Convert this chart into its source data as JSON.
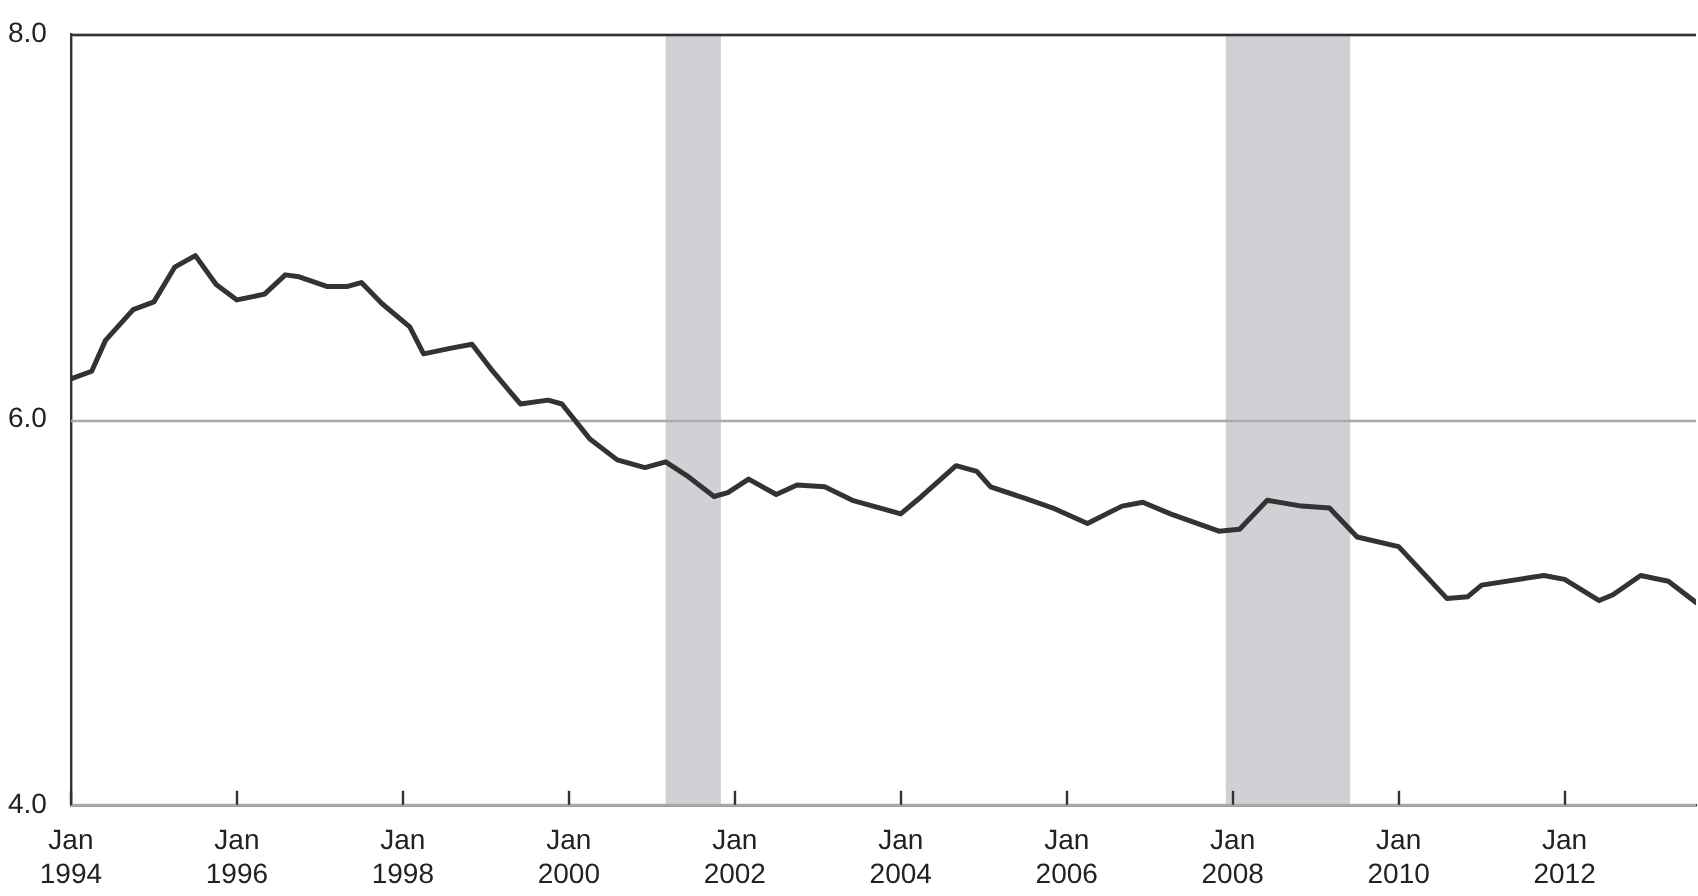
{
  "chart_data": {
    "type": "line",
    "x": [
      "1994-01",
      "1994-04",
      "1994-06",
      "1994-10",
      "1995-01",
      "1995-04",
      "1995-07",
      "1995-10",
      "1996-01",
      "1996-05",
      "1996-08",
      "1996-10",
      "1997-02",
      "1997-05",
      "1997-07",
      "1997-10",
      "1998-02",
      "1998-04",
      "1998-08",
      "1998-11",
      "1999-02",
      "1999-06",
      "1999-10",
      "1999-12",
      "2000-04",
      "2000-08",
      "2000-12",
      "2001-03",
      "2001-06",
      "2001-10",
      "2001-12",
      "2002-03",
      "2002-07",
      "2002-10",
      "2003-02",
      "2003-06",
      "2004-01",
      "2004-04",
      "2004-09",
      "2004-12",
      "2005-02",
      "2005-07",
      "2005-11",
      "2006-04",
      "2006-09",
      "2006-12",
      "2007-04",
      "2007-11",
      "2008-02",
      "2008-06",
      "2008-11",
      "2009-03",
      "2009-07",
      "2010-01",
      "2010-08",
      "2010-11",
      "2011-01",
      "2011-10",
      "2012-01",
      "2012-06",
      "2012-08",
      "2012-12",
      "2013-04",
      "2013-08"
    ],
    "series": [
      {
        "color": "#333333",
        "values": [
          6.21,
          6.25,
          6.41,
          6.57,
          6.61,
          6.79,
          6.85,
          6.7,
          6.62,
          6.65,
          6.75,
          6.74,
          6.69,
          6.69,
          6.71,
          6.6,
          6.48,
          6.34,
          6.37,
          6.39,
          6.25,
          6.08,
          6.1,
          6.08,
          5.9,
          5.79,
          5.75,
          5.78,
          5.71,
          5.6,
          5.62,
          5.69,
          5.61,
          5.66,
          5.65,
          5.58,
          5.51,
          5.6,
          5.76,
          5.73,
          5.65,
          5.59,
          5.54,
          5.46,
          5.55,
          5.57,
          5.51,
          5.42,
          5.43,
          5.58,
          5.55,
          5.54,
          5.39,
          5.34,
          5.07,
          5.08,
          5.14,
          5.19,
          5.17,
          5.06,
          5.09,
          5.19,
          5.16,
          5.05
        ]
      }
    ],
    "xlim": [
      "1994-01",
      "2013-08"
    ],
    "xticks": [
      {
        "value": "1994-01",
        "label": "Jan\n1994"
      },
      {
        "value": "1996-01",
        "label": "Jan\n1996"
      },
      {
        "value": "1998-01",
        "label": "Jan\n1998"
      },
      {
        "value": "2000-01",
        "label": "Jan\n2000"
      },
      {
        "value": "2002-01",
        "label": "Jan\n2002"
      },
      {
        "value": "2004-01",
        "label": "Jan\n2004"
      },
      {
        "value": "2006-01",
        "label": "Jan\n2006"
      },
      {
        "value": "2008-01",
        "label": "Jan\n2008"
      },
      {
        "value": "2010-01",
        "label": "Jan\n2010"
      },
      {
        "value": "2012-01",
        "label": "Jan\n2012"
      }
    ],
    "ylim": [
      4,
      8
    ],
    "yticks": [
      {
        "value": 4,
        "label": "4.0"
      },
      {
        "value": 6,
        "label": "6.0"
      },
      {
        "value": 8,
        "label": "8.0"
      }
    ],
    "bands": [
      {
        "axis": "x",
        "from": "2001-03",
        "to": "2001-11",
        "color": "#d0d1d4"
      },
      {
        "axis": "x",
        "from": "2007-12",
        "to": "2009-06",
        "color": "#d0d1d4"
      }
    ],
    "grid": "y",
    "marker": "none",
    "line_style": "solid",
    "legend": false
  }
}
